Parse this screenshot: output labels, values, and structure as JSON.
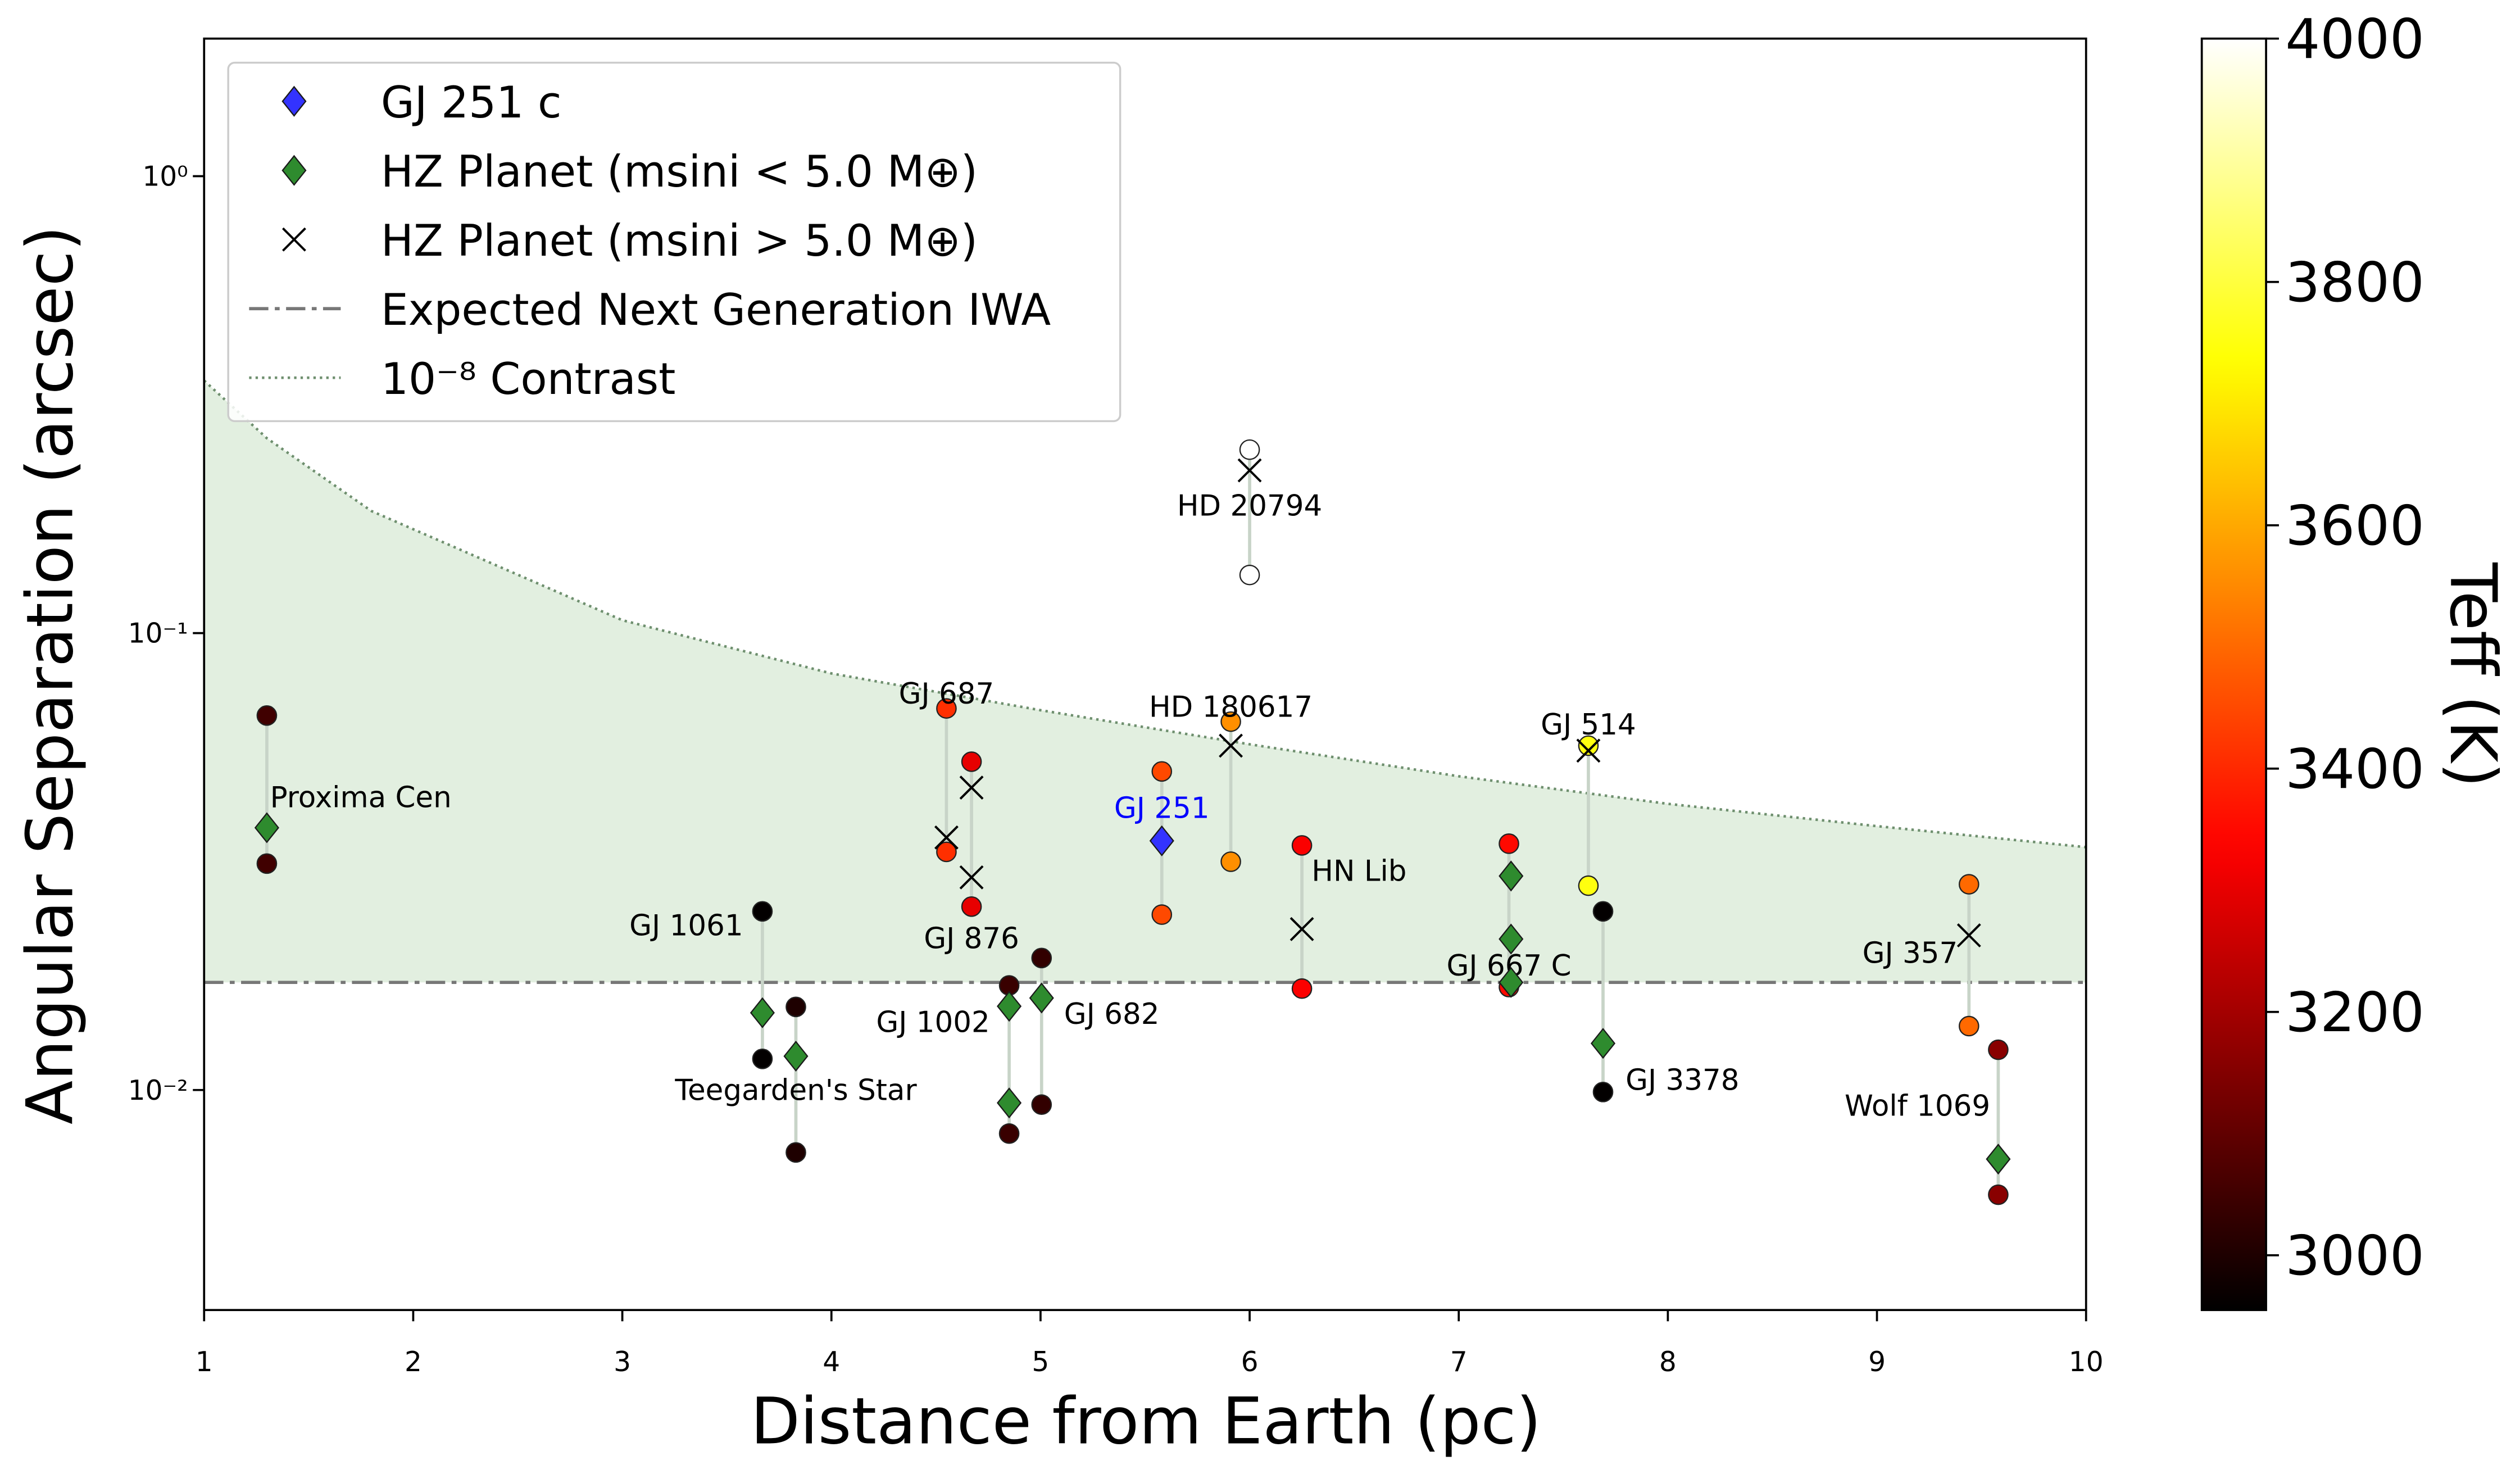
{
  "chart_data": {
    "type": "scatter",
    "x_label": "Distance from Earth (pc)",
    "y_label": "Angular Separation (arcsec)",
    "xlim": [
      1,
      10
    ],
    "xticks": [
      1,
      2,
      3,
      4,
      5,
      6,
      7,
      8,
      9,
      10
    ],
    "ylim": [
      0.0033,
      2.0
    ],
    "yscale": "log",
    "yticks": [
      {
        "value": 0.01,
        "label": "10⁻²"
      },
      {
        "value": 0.1,
        "label": "10⁻¹"
      },
      {
        "value": 1,
        "label": "10⁰"
      }
    ],
    "colorbar": {
      "label": "Teff (K)",
      "colormap": "hot",
      "lim": [
        2955,
        4000
      ],
      "ticks": [
        3000,
        3200,
        3400,
        3600,
        3800,
        4000
      ]
    },
    "legend": "upper left",
    "stars": [
      {
        "name": "Proxima Cen",
        "x": 1.3,
        "hz_outer": 0.066,
        "hz_inner": 0.0313,
        "teff": 3050,
        "label_color": "#000000"
      },
      {
        "name": "GJ 1061",
        "x": 3.67,
        "hz_outer": 0.0246,
        "hz_inner": 0.0117,
        "teff": 2960,
        "label_color": "#000000"
      },
      {
        "name": "Teegarden's Star",
        "x": 3.83,
        "hz_outer": 0.0152,
        "hz_inner": 0.0073,
        "teff": 3000,
        "label_color": "#000000"
      },
      {
        "name": "GJ 687",
        "x": 4.55,
        "hz_outer": 0.0684,
        "hz_inner": 0.0332,
        "teff": 3410,
        "label_color": "#000000"
      },
      {
        "name": "GJ 876",
        "x": 4.67,
        "hz_outer": 0.0523,
        "hz_inner": 0.0252,
        "teff": 3300,
        "label_color": "#000000"
      },
      {
        "name": "GJ 1002",
        "x": 4.85,
        "hz_outer": 0.01694,
        "hz_inner": 0.00803,
        "teff": 3040,
        "label_color": "#000000"
      },
      {
        "name": "GJ 682",
        "x": 5.005,
        "hz_outer": 0.01945,
        "hz_inner": 0.00929,
        "teff": 3030,
        "label_color": "#000000"
      },
      {
        "name": "GJ 251",
        "x": 5.58,
        "hz_outer": 0.0498,
        "hz_inner": 0.0242,
        "teff": 3450,
        "label_color": "#0000ff"
      },
      {
        "name": "HD 180617",
        "x": 5.91,
        "hz_outer": 0.064,
        "hz_inner": 0.0316,
        "teff": 3560,
        "label_color": "#000000"
      },
      {
        "name": "HD 20794",
        "x": 6.0,
        "hz_outer": 0.252,
        "hz_inner": 0.134,
        "teff": 5400,
        "label_color": "#000000"
      },
      {
        "name": "HN Lib",
        "x": 6.25,
        "hz_outer": 0.0343,
        "hz_inner": 0.01667,
        "teff": 3330,
        "label_color": "#000000"
      },
      {
        "name": "GJ 667 C",
        "x": 7.24,
        "hz_outer": 0.0346,
        "hz_inner": 0.0168,
        "teff": 3350,
        "label_color": "#000000"
      },
      {
        "name": "GJ 514",
        "x": 7.62,
        "hz_outer": 0.0567,
        "hz_inner": 0.028,
        "teff": 3750,
        "label_color": "#000000"
      },
      {
        "name": "GJ 3378",
        "x": 7.69,
        "hz_outer": 0.0246,
        "hz_inner": 0.0099,
        "teff": 2960,
        "label_color": "#000000"
      },
      {
        "name": "GJ 357",
        "x": 9.44,
        "hz_outer": 0.0282,
        "hz_inner": 0.0138,
        "teff": 3500,
        "label_color": "#000000"
      },
      {
        "name": "Wolf 1069",
        "x": 9.58,
        "hz_outer": 0.01225,
        "hz_inner": 0.0059,
        "teff": 3160,
        "label_color": "#000000"
      }
    ],
    "series": [
      {
        "name": "GJ 251 c",
        "color": "#3333ff",
        "marker": "diamond",
        "x": [
          5.58
        ],
        "values": [
          0.0351
        ]
      },
      {
        "name": "HZ Planet (msini < 5.0 M⊕)",
        "color": "#2e8b2e",
        "marker": "diamond",
        "x": [
          1.3,
          3.67,
          3.83,
          4.85,
          4.85,
          5.005,
          7.25,
          7.25,
          7.25,
          7.69,
          9.58
        ],
        "values": [
          0.0375,
          0.01476,
          0.01186,
          0.01525,
          0.00937,
          0.0159,
          0.0294,
          0.0214,
          0.0172,
          0.01265,
          0.00706
        ]
      },
      {
        "name": "HZ Planet (msini > 5.0 M⊕)",
        "color": "#000000",
        "marker": "x",
        "x": [
          4.55,
          4.67,
          4.67,
          5.91,
          6.0,
          6.25,
          7.62,
          9.44
        ],
        "values": [
          0.0357,
          0.0459,
          0.0292,
          0.0567,
          0.227,
          0.0225,
          0.0553,
          0.0218
        ]
      }
    ],
    "iwa": {
      "name": "Expected Next Generation IWA",
      "y": 0.0172,
      "color": "#777777"
    },
    "contrast": {
      "name": "10⁻⁸ Contrast",
      "color": "#6e8f6e",
      "fill": "#e2efe0",
      "x": [
        1,
        1.3,
        1.8,
        3,
        4,
        5,
        6,
        7,
        8,
        9,
        10
      ],
      "values": [
        0.357,
        0.267,
        0.185,
        0.1067,
        0.0816,
        0.0678,
        0.0571,
        0.0486,
        0.0423,
        0.0378,
        0.034
      ]
    }
  }
}
